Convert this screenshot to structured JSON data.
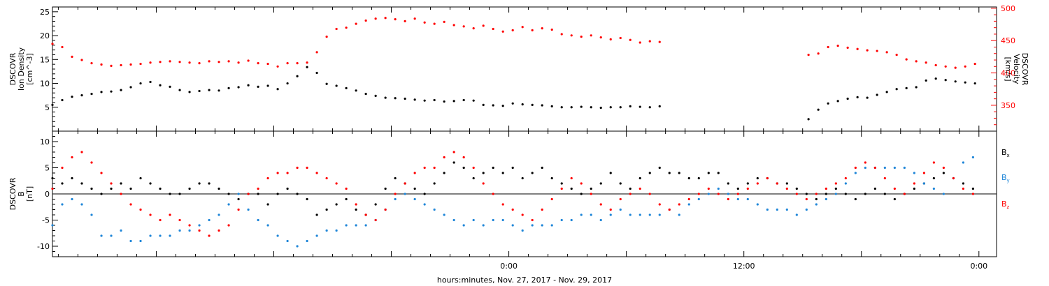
{
  "chart_data": [
    {
      "type": "scatter",
      "x_unit": "hours from Nov. 28, 2017 00:00",
      "x_range": [
        -23.3,
        24.9
      ],
      "xlabel": "hours:minutes, Nov. 27, 2017 - Nov. 29, 2017",
      "x_ticklabels": [
        {
          "x": 0,
          "label": "0:00"
        },
        {
          "x": 12,
          "label": "12:00"
        },
        {
          "x": 24,
          "label": "0:00"
        }
      ],
      "ylabel_left": [
        "DSCOVR",
        "Ion Density",
        "[cm^-3]"
      ],
      "ylim_left": [
        0,
        26
      ],
      "yticks_left": [
        5,
        10,
        15,
        20,
        25
      ],
      "ylabel_right": [
        "DSCOVR",
        "Velocity",
        "[km/s]"
      ],
      "ylim_right": [
        310,
        502
      ],
      "yticks_right": [
        350,
        400,
        450,
        500
      ],
      "series": [
        {
          "name": "Ion Density",
          "axis": "left",
          "color": "#000000",
          "x": [
            -23.3,
            -22.8,
            -22.3,
            -21.8,
            -21.3,
            -20.8,
            -20.3,
            -19.8,
            -19.3,
            -18.8,
            -18.3,
            -17.8,
            -17.3,
            -16.8,
            -16.3,
            -15.8,
            -15.3,
            -14.8,
            -14.3,
            -13.8,
            -13.3,
            -12.8,
            -12.3,
            -11.8,
            -11.3,
            -10.8,
            -10.3,
            -9.8,
            -9.3,
            -8.8,
            -8.3,
            -7.8,
            -7.3,
            -6.8,
            -6.3,
            -5.8,
            -5.3,
            -4.8,
            -4.3,
            -3.8,
            -3.3,
            -2.8,
            -2.3,
            -1.8,
            -1.3,
            -0.8,
            -0.3,
            0.2,
            0.7,
            1.2,
            1.7,
            2.2,
            2.7,
            3.2,
            3.7,
            4.2,
            4.7,
            5.2,
            5.7,
            6.2,
            6.7,
            7.2,
            7.7,
            15.3,
            15.8,
            16.3,
            16.8,
            17.3,
            17.8,
            18.3,
            18.8,
            19.3,
            19.8,
            20.3,
            20.8,
            21.3,
            21.8,
            22.3,
            22.8,
            23.3,
            23.8
          ],
          "y": [
            5.5,
            6.5,
            7.2,
            7.5,
            7.8,
            8.2,
            8.3,
            8.6,
            9.2,
            10.0,
            10.3,
            9.6,
            9.3,
            8.6,
            8.2,
            8.4,
            8.6,
            8.5,
            9.0,
            9.2,
            9.6,
            9.3,
            9.5,
            8.8,
            10.0,
            11.5,
            13.4,
            12.2,
            9.9,
            9.5,
            9.0,
            8.5,
            7.8,
            7.4,
            7.0,
            6.9,
            6.8,
            6.6,
            6.4,
            6.5,
            6.2,
            6.3,
            6.5,
            6.4,
            5.5,
            5.4,
            5.3,
            5.8,
            5.6,
            5.5,
            5.4,
            5.2,
            5.0,
            5.0,
            5.1,
            5.0,
            4.9,
            5.0,
            5.0,
            5.2,
            5.1,
            5.0,
            5.2,
            2.5,
            4.5,
            5.8,
            6.3,
            6.8,
            7.1,
            7.0,
            7.6,
            8.2,
            8.8,
            9.0,
            9.2,
            10.6,
            11.0,
            10.7,
            10.4,
            10.2,
            10.0
          ]
        },
        {
          "name": "Velocity",
          "axis": "right",
          "color": "#ff0000",
          "x": [
            -23.3,
            -22.8,
            -22.3,
            -21.8,
            -21.3,
            -20.8,
            -20.3,
            -19.8,
            -19.3,
            -18.8,
            -18.3,
            -17.8,
            -17.3,
            -16.8,
            -16.3,
            -15.8,
            -15.3,
            -14.8,
            -14.3,
            -13.8,
            -13.3,
            -12.8,
            -12.3,
            -11.8,
            -11.3,
            -10.8,
            -10.3,
            -9.8,
            -9.3,
            -8.8,
            -8.3,
            -7.8,
            -7.3,
            -6.8,
            -6.3,
            -5.8,
            -5.3,
            -4.8,
            -4.3,
            -3.8,
            -3.3,
            -2.8,
            -2.3,
            -1.8,
            -1.3,
            -0.8,
            -0.3,
            0.2,
            0.7,
            1.2,
            1.7,
            2.2,
            2.7,
            3.2,
            3.7,
            4.2,
            4.7,
            5.2,
            5.7,
            6.2,
            6.7,
            7.2,
            7.7,
            15.3,
            15.8,
            16.3,
            16.8,
            17.3,
            17.8,
            18.3,
            18.8,
            19.3,
            19.8,
            20.3,
            20.8,
            21.3,
            21.8,
            22.3,
            22.8,
            23.3,
            23.8
          ],
          "y": [
            445,
            440,
            425,
            420,
            415,
            413,
            411,
            412,
            413,
            414,
            416,
            417,
            418,
            417,
            416,
            415,
            418,
            417,
            418,
            416,
            419,
            415,
            414,
            410,
            415,
            415,
            416,
            432,
            456,
            468,
            470,
            476,
            481,
            484,
            485,
            483,
            480,
            484,
            478,
            476,
            479,
            474,
            472,
            469,
            473,
            468,
            464,
            466,
            471,
            466,
            469,
            467,
            460,
            458,
            456,
            458,
            455,
            452,
            454,
            451,
            447,
            449,
            448,
            428,
            430,
            440,
            442,
            439,
            437,
            435,
            434,
            432,
            428,
            421,
            418,
            416,
            412,
            410,
            408,
            410,
            414
          ]
        }
      ]
    },
    {
      "type": "scatter",
      "x_unit": "hours from Nov. 28, 2017 00:00",
      "x_range": [
        -23.3,
        24.9
      ],
      "ylabel_left": [
        "DSCOVR",
        "B",
        "[nT]"
      ],
      "ylim": [
        -12,
        12
      ],
      "yticks": [
        -10,
        -5,
        0,
        5,
        10
      ],
      "zero_line": true,
      "legend": {
        "position": "right",
        "entries": [
          "B",
          "B",
          "B"
        ],
        "subscripts": [
          "x",
          "y",
          "z"
        ]
      },
      "series": [
        {
          "name": "Bx",
          "color": "#000000",
          "x": [
            -23.3,
            -22.8,
            -22.3,
            -21.8,
            -21.3,
            -20.8,
            -20.3,
            -19.8,
            -19.3,
            -18.8,
            -18.3,
            -17.8,
            -17.3,
            -16.8,
            -16.3,
            -15.8,
            -15.3,
            -14.8,
            -14.3,
            -13.8,
            -13.3,
            -12.8,
            -12.3,
            -11.8,
            -11.3,
            -10.8,
            -10.3,
            -9.8,
            -9.3,
            -8.8,
            -8.3,
            -7.8,
            -7.3,
            -6.8,
            -6.3,
            -5.8,
            -5.3,
            -4.8,
            -4.3,
            -3.8,
            -3.3,
            -2.8,
            -2.3,
            -1.8,
            -1.3,
            -0.8,
            -0.3,
            0.2,
            0.7,
            1.2,
            1.7,
            2.2,
            2.7,
            3.2,
            3.7,
            4.2,
            4.7,
            5.2,
            5.7,
            6.2,
            6.7,
            7.2,
            7.7,
            8.2,
            8.7,
            9.2,
            9.7,
            10.2,
            10.7,
            11.2,
            11.7,
            12.2,
            12.7,
            13.2,
            13.7,
            14.2,
            14.7,
            15.2,
            15.7,
            16.2,
            16.7,
            17.2,
            17.7,
            18.2,
            18.7,
            19.2,
            19.7,
            20.2,
            20.7,
            21.2,
            21.7,
            22.2,
            22.7,
            23.2,
            23.7
          ],
          "y": [
            3,
            2,
            3,
            2,
            1,
            0,
            1,
            2,
            1,
            3,
            2,
            1,
            0,
            0,
            1,
            2,
            2,
            1,
            0,
            -1,
            0,
            0,
            -2,
            0,
            1,
            0,
            -1,
            -4,
            -3,
            -2,
            -1,
            -3,
            -4,
            -2,
            1,
            3,
            2,
            1,
            0,
            2,
            4,
            6,
            5,
            3,
            4,
            5,
            4,
            5,
            3,
            4,
            5,
            3,
            2,
            1,
            0,
            1,
            2,
            4,
            2,
            1,
            3,
            4,
            5,
            4,
            4,
            3,
            3,
            4,
            4,
            2,
            1,
            2,
            3,
            3,
            2,
            2,
            1,
            0,
            -1,
            0,
            1,
            0,
            -1,
            0,
            1,
            0,
            -1,
            0,
            1,
            2,
            3,
            4,
            3,
            2,
            1
          ]
        },
        {
          "name": "By",
          "color": "#1f86d8",
          "x": [
            -23.3,
            -22.8,
            -22.3,
            -21.8,
            -21.3,
            -20.8,
            -20.3,
            -19.8,
            -19.3,
            -18.8,
            -18.3,
            -17.8,
            -17.3,
            -16.8,
            -16.3,
            -15.8,
            -15.3,
            -14.8,
            -14.3,
            -13.8,
            -13.3,
            -12.8,
            -12.3,
            -11.8,
            -11.3,
            -10.8,
            -10.3,
            -9.8,
            -9.3,
            -8.8,
            -8.3,
            -7.8,
            -7.3,
            -6.8,
            -6.3,
            -5.8,
            -5.3,
            -4.8,
            -4.3,
            -3.8,
            -3.3,
            -2.8,
            -2.3,
            -1.8,
            -1.3,
            -0.8,
            -0.3,
            0.2,
            0.7,
            1.2,
            1.7,
            2.2,
            2.7,
            3.2,
            3.7,
            4.2,
            4.7,
            5.2,
            5.7,
            6.2,
            6.7,
            7.2,
            7.7,
            8.2,
            8.7,
            9.2,
            9.7,
            10.2,
            10.7,
            11.2,
            11.7,
            12.2,
            12.7,
            13.2,
            13.7,
            14.2,
            14.7,
            15.2,
            15.7,
            16.2,
            16.7,
            17.2,
            17.7,
            18.2,
            18.7,
            19.2,
            19.7,
            20.2,
            20.7,
            21.2,
            21.7,
            22.2,
            22.7,
            23.2,
            23.7
          ],
          "y": [
            -6,
            -2,
            -1,
            -2,
            -4,
            -8,
            -8,
            -7,
            -9,
            -9,
            -8,
            -8,
            -8,
            -7,
            -7,
            -6,
            -5,
            -4,
            -2,
            0,
            -3,
            -5,
            -6,
            -8,
            -9,
            -10,
            -9,
            -8,
            -7,
            -7,
            -6,
            -6,
            -6,
            -5,
            -3,
            -1,
            0,
            -1,
            -2,
            -3,
            -4,
            -5,
            -6,
            -5,
            -6,
            -5,
            -5,
            -6,
            -7,
            -6,
            -6,
            -6,
            -5,
            -5,
            -4,
            -4,
            -5,
            -4,
            -3,
            -4,
            -4,
            -4,
            -4,
            -3,
            -4,
            -2,
            -1,
            0,
            1,
            0,
            -1,
            -1,
            -2,
            -3,
            -3,
            -3,
            -4,
            -3,
            -2,
            -1,
            0,
            2,
            4,
            5,
            5,
            5,
            5,
            5,
            4,
            2,
            1,
            0,
            3,
            6,
            7
          ]
        },
        {
          "name": "Bz",
          "color": "#ff0000",
          "x": [
            -23.3,
            -22.8,
            -22.3,
            -21.8,
            -21.3,
            -20.8,
            -20.3,
            -19.8,
            -19.3,
            -18.8,
            -18.3,
            -17.8,
            -17.3,
            -16.8,
            -16.3,
            -15.8,
            -15.3,
            -14.8,
            -14.3,
            -13.8,
            -13.3,
            -12.8,
            -12.3,
            -11.8,
            -11.3,
            -10.8,
            -10.3,
            -9.8,
            -9.3,
            -8.8,
            -8.3,
            -7.8,
            -7.3,
            -6.8,
            -6.3,
            -5.8,
            -5.3,
            -4.8,
            -4.3,
            -3.8,
            -3.3,
            -2.8,
            -2.3,
            -1.8,
            -1.3,
            -0.8,
            -0.3,
            0.2,
            0.7,
            1.2,
            1.7,
            2.2,
            2.7,
            3.2,
            3.7,
            4.2,
            4.7,
            5.2,
            5.7,
            6.2,
            6.7,
            7.2,
            7.7,
            8.2,
            8.7,
            9.2,
            9.7,
            10.2,
            10.7,
            11.2,
            11.7,
            12.2,
            12.7,
            13.2,
            13.7,
            14.2,
            14.7,
            15.2,
            15.7,
            16.2,
            16.7,
            17.2,
            17.7,
            18.2,
            18.7,
            19.2,
            19.7,
            20.2,
            20.7,
            21.2,
            21.7,
            22.2,
            22.7,
            23.2,
            23.7
          ],
          "y": [
            1,
            5,
            7,
            8,
            6,
            4,
            2,
            0,
            -2,
            -3,
            -4,
            -5,
            -4,
            -5,
            -6,
            -7,
            -8,
            -7,
            -6,
            -3,
            0,
            1,
            3,
            4,
            4,
            5,
            5,
            4,
            3,
            2,
            1,
            -2,
            -4,
            -5,
            -3,
            0,
            2,
            4,
            5,
            5,
            7,
            8,
            7,
            5,
            2,
            0,
            -2,
            -3,
            -4,
            -5,
            -3,
            -1,
            1,
            3,
            2,
            0,
            -2,
            -3,
            -1,
            0,
            1,
            0,
            -2,
            -3,
            -2,
            -1,
            0,
            1,
            0,
            -1,
            0,
            1,
            2,
            3,
            2,
            1,
            0,
            -1,
            0,
            1,
            2,
            3,
            5,
            6,
            5,
            3,
            1,
            0,
            2,
            4,
            6,
            5,
            3,
            1,
            0
          ]
        }
      ]
    }
  ]
}
